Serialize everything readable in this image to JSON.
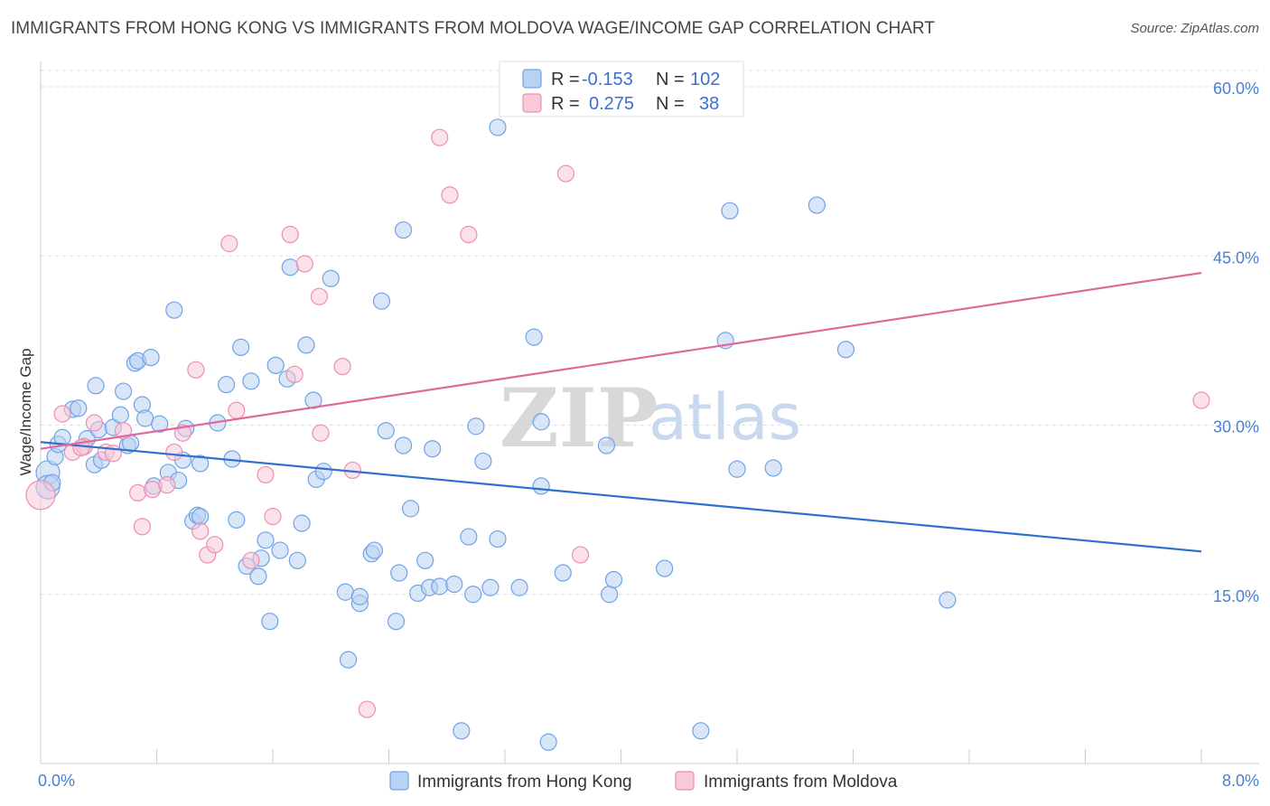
{
  "title": "IMMIGRANTS FROM HONG KONG VS IMMIGRANTS FROM MOLDOVA WAGE/INCOME GAP CORRELATION CHART",
  "source": "Source: ZipAtlas.com",
  "colors": {
    "blue": "#6fa3e6",
    "blue_fill": "#b9d1f3",
    "blue_line": "#2f6fd0",
    "pink": "#ec8fb0",
    "pink_fill": "#f8c9d9",
    "pink_line": "#e0689a",
    "axis_text": "#4a7fd4"
  },
  "legend": {
    "rows": [
      {
        "r_label": "R =",
        "r_value": "-0.153",
        "n_label": "N =",
        "n_value": "102"
      },
      {
        "r_label": "R =",
        "r_value": "0.275",
        "n_label": "N =",
        "n_value": "38"
      }
    ]
  },
  "bottom_legend": [
    "Immigrants from Hong Kong",
    "Immigrants from Moldova"
  ],
  "watermark": {
    "zip": "ZIP",
    "atlas": "atlas"
  },
  "chart_data": {
    "type": "scatter",
    "title": "IMMIGRANTS FROM HONG KONG VS IMMIGRANTS FROM MOLDOVA WAGE/INCOME GAP CORRELATION CHART",
    "xlabel": "",
    "ylabel": "Wage/Income Gap",
    "xlim": [
      0,
      8
    ],
    "ylim": [
      0,
      60
    ],
    "x_tick_labels": [
      "0.0%",
      "8.0%"
    ],
    "y_ticks": [
      15,
      30,
      45,
      60
    ],
    "y_tick_labels": [
      "15.0%",
      "30.0%",
      "45.0%",
      "60.0%"
    ],
    "grid": true,
    "legend_position": "top-center",
    "series": [
      {
        "name": "Immigrants from Hong Kong",
        "color": "#6fa3e6",
        "trend": [
          [
            0.0,
            28.5
          ],
          [
            8.0,
            18.8
          ]
        ],
        "points": [
          [
            0.05,
            25.8
          ],
          [
            0.05,
            24.5
          ],
          [
            0.1,
            27.2
          ],
          [
            0.12,
            28.3
          ],
          [
            0.15,
            28.9
          ],
          [
            0.22,
            31.4
          ],
          [
            0.3,
            28.1
          ],
          [
            0.32,
            28.8
          ],
          [
            0.37,
            26.5
          ],
          [
            0.38,
            33.5
          ],
          [
            0.4,
            29.6
          ],
          [
            0.42,
            26.9
          ],
          [
            0.5,
            29.8
          ],
          [
            0.55,
            30.9
          ],
          [
            0.57,
            33.0
          ],
          [
            0.6,
            28.2
          ],
          [
            0.62,
            28.4
          ],
          [
            0.65,
            35.5
          ],
          [
            0.67,
            35.7
          ],
          [
            0.7,
            31.8
          ],
          [
            0.72,
            30.6
          ],
          [
            0.76,
            36.0
          ],
          [
            0.78,
            24.6
          ],
          [
            0.82,
            30.1
          ],
          [
            0.88,
            25.8
          ],
          [
            0.92,
            40.2
          ],
          [
            0.95,
            25.1
          ],
          [
            0.98,
            26.9
          ],
          [
            1.0,
            29.7
          ],
          [
            1.05,
            21.5
          ],
          [
            1.08,
            22.0
          ],
          [
            1.1,
            21.9
          ],
          [
            1.22,
            30.2
          ],
          [
            1.28,
            33.6
          ],
          [
            1.32,
            27.0
          ],
          [
            1.35,
            21.6
          ],
          [
            1.38,
            36.9
          ],
          [
            1.42,
            17.5
          ],
          [
            1.45,
            33.9
          ],
          [
            1.5,
            16.6
          ],
          [
            1.52,
            18.2
          ],
          [
            1.55,
            19.8
          ],
          [
            1.58,
            12.6
          ],
          [
            1.62,
            35.3
          ],
          [
            1.65,
            18.9
          ],
          [
            1.7,
            34.1
          ],
          [
            1.72,
            44.0
          ],
          [
            1.77,
            18.0
          ],
          [
            1.8,
            21.3
          ],
          [
            1.83,
            37.1
          ],
          [
            1.88,
            32.2
          ],
          [
            1.9,
            25.2
          ],
          [
            1.95,
            25.9
          ],
          [
            2.0,
            43.0
          ],
          [
            2.1,
            15.2
          ],
          [
            2.12,
            9.2
          ],
          [
            2.2,
            14.2
          ],
          [
            2.2,
            14.8
          ],
          [
            2.28,
            18.6
          ],
          [
            2.3,
            18.9
          ],
          [
            2.35,
            41.0
          ],
          [
            2.38,
            29.5
          ],
          [
            2.45,
            12.6
          ],
          [
            2.47,
            16.9
          ],
          [
            2.5,
            47.3
          ],
          [
            2.5,
            28.2
          ],
          [
            2.55,
            22.6
          ],
          [
            2.6,
            15.1
          ],
          [
            2.65,
            18.0
          ],
          [
            2.68,
            15.6
          ],
          [
            2.7,
            27.9
          ],
          [
            2.75,
            15.7
          ],
          [
            2.85,
            15.9
          ],
          [
            2.9,
            2.9
          ],
          [
            2.95,
            20.1
          ],
          [
            2.98,
            15.0
          ],
          [
            3.0,
            29.9
          ],
          [
            3.05,
            26.8
          ],
          [
            3.1,
            15.6
          ],
          [
            3.15,
            19.9
          ],
          [
            3.15,
            56.4
          ],
          [
            3.3,
            15.6
          ],
          [
            3.4,
            37.8
          ],
          [
            3.45,
            30.3
          ],
          [
            3.45,
            24.6
          ],
          [
            3.5,
            1.9
          ],
          [
            3.6,
            16.9
          ],
          [
            3.9,
            28.2
          ],
          [
            3.92,
            15.0
          ],
          [
            3.95,
            16.3
          ],
          [
            4.3,
            17.3
          ],
          [
            4.55,
            2.9
          ],
          [
            4.72,
            37.5
          ],
          [
            4.75,
            49.0
          ],
          [
            4.8,
            26.1
          ],
          [
            5.05,
            26.2
          ],
          [
            5.35,
            49.5
          ],
          [
            5.55,
            36.7
          ],
          [
            6.25,
            14.5
          ],
          [
            0.08,
            24.9
          ],
          [
            0.26,
            31.5
          ],
          [
            1.1,
            26.6
          ]
        ]
      },
      {
        "name": "Immigrants from Moldova",
        "color": "#ec8fb0",
        "trend": [
          [
            0.0,
            27.9
          ],
          [
            8.0,
            43.5
          ]
        ],
        "points": [
          [
            0.0,
            23.8
          ],
          [
            0.15,
            31.0
          ],
          [
            0.22,
            27.6
          ],
          [
            0.3,
            28.1
          ],
          [
            0.37,
            30.2
          ],
          [
            0.45,
            27.6
          ],
          [
            0.5,
            27.5
          ],
          [
            0.57,
            29.5
          ],
          [
            0.67,
            24.0
          ],
          [
            0.7,
            21.0
          ],
          [
            0.77,
            24.3
          ],
          [
            0.87,
            24.7
          ],
          [
            0.92,
            27.6
          ],
          [
            0.98,
            29.3
          ],
          [
            1.07,
            34.9
          ],
          [
            1.1,
            20.6
          ],
          [
            1.15,
            18.5
          ],
          [
            1.2,
            19.4
          ],
          [
            1.3,
            46.1
          ],
          [
            1.35,
            31.3
          ],
          [
            1.45,
            18.0
          ],
          [
            1.55,
            25.6
          ],
          [
            1.6,
            21.9
          ],
          [
            1.72,
            46.9
          ],
          [
            1.75,
            34.5
          ],
          [
            1.82,
            44.3
          ],
          [
            1.92,
            41.4
          ],
          [
            1.93,
            29.3
          ],
          [
            2.08,
            35.2
          ],
          [
            2.15,
            26.0
          ],
          [
            2.25,
            4.8
          ],
          [
            2.75,
            55.5
          ],
          [
            2.82,
            50.4
          ],
          [
            2.95,
            46.9
          ],
          [
            3.62,
            52.3
          ],
          [
            3.72,
            18.5
          ],
          [
            8.0,
            32.2
          ],
          [
            0.28,
            28.0
          ]
        ]
      }
    ]
  }
}
